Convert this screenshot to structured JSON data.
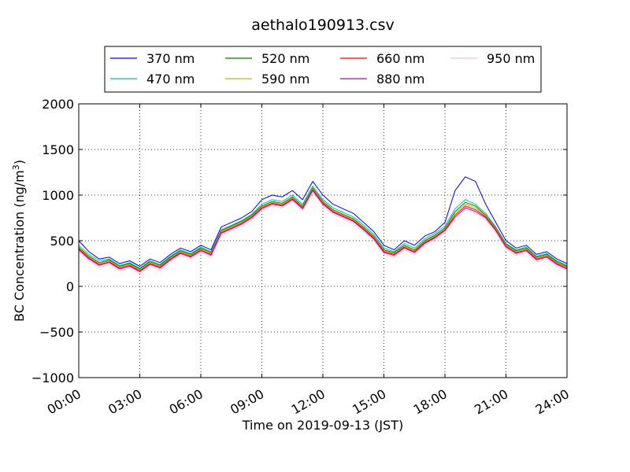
{
  "chart_data": {
    "type": "line",
    "title": "aethalo190913.csv",
    "xlabel": "Time on 2019-09-13 (JST)",
    "ylabel_main": "BC Concentration (ng/m",
    "ylabel_sup": "3",
    "ylabel_close": ")",
    "xlim": [
      0,
      24
    ],
    "ylim": [
      -1000,
      2000
    ],
    "x_ticks": [
      {
        "value": 0,
        "label": "00:00"
      },
      {
        "value": 3,
        "label": "03:00"
      },
      {
        "value": 6,
        "label": "06:00"
      },
      {
        "value": 9,
        "label": "09:00"
      },
      {
        "value": 12,
        "label": "12:00"
      },
      {
        "value": 15,
        "label": "15:00"
      },
      {
        "value": 18,
        "label": "18:00"
      },
      {
        "value": 21,
        "label": "21:00"
      },
      {
        "value": 24,
        "label": "24:00"
      }
    ],
    "y_ticks": [
      {
        "value": 2000,
        "label": "2000"
      },
      {
        "value": 1500,
        "label": "1500"
      },
      {
        "value": 1000,
        "label": "1000"
      },
      {
        "value": 500,
        "label": "500"
      },
      {
        "value": 0,
        "label": "0"
      },
      {
        "value": -500,
        "label": "−500"
      },
      {
        "value": -1000,
        "label": "−1000"
      }
    ],
    "grid": true,
    "legend_position": "top-center",
    "time_hours": [
      0,
      0.5,
      1,
      1.5,
      2,
      2.5,
      3,
      3.5,
      4,
      4.5,
      5,
      5.5,
      6,
      6.5,
      7,
      7.5,
      8,
      8.5,
      9,
      9.5,
      10,
      10.5,
      11,
      11.5,
      12,
      12.5,
      13,
      13.5,
      14,
      14.5,
      15,
      15.5,
      16,
      16.5,
      17,
      17.5,
      18,
      18.5,
      19,
      19.5,
      20,
      20.5,
      21,
      21.5,
      22,
      22.5,
      23,
      23.5,
      24
    ],
    "series": [
      {
        "name": "370 nm",
        "color": "#0000ff",
        "values": [
          500,
          380,
          300,
          320,
          250,
          280,
          220,
          300,
          260,
          350,
          420,
          380,
          450,
          400,
          650,
          700,
          750,
          820,
          950,
          1000,
          980,
          1050,
          950,
          1150,
          1000,
          900,
          850,
          800,
          700,
          600,
          450,
          400,
          500,
          450,
          550,
          600,
          700,
          1050,
          1200,
          1150,
          900,
          700,
          500,
          420,
          450,
          350,
          380,
          300,
          250
        ]
      },
      {
        "name": "470 nm",
        "color": "#00bfbf",
        "values": [
          450,
          350,
          280,
          300,
          230,
          260,
          200,
          280,
          240,
          330,
          400,
          360,
          430,
          380,
          620,
          670,
          720,
          790,
          900,
          950,
          930,
          1000,
          900,
          1100,
          950,
          860,
          810,
          760,
          670,
          570,
          420,
          380,
          470,
          420,
          520,
          580,
          660,
          850,
          950,
          900,
          800,
          650,
          470,
          400,
          430,
          330,
          360,
          280,
          230
        ]
      },
      {
        "name": "520 nm",
        "color": "#008000",
        "values": [
          430,
          330,
          260,
          290,
          220,
          250,
          190,
          270,
          230,
          320,
          390,
          350,
          420,
          370,
          610,
          660,
          710,
          780,
          880,
          930,
          910,
          980,
          880,
          1080,
          930,
          840,
          790,
          740,
          650,
          550,
          400,
          370,
          450,
          400,
          500,
          560,
          640,
          820,
          920,
          880,
          780,
          640,
          460,
          390,
          420,
          320,
          350,
          270,
          220
        ]
      },
      {
        "name": "590 nm",
        "color": "#bfbf00",
        "values": [
          420,
          320,
          250,
          280,
          210,
          240,
          180,
          260,
          220,
          310,
          380,
          340,
          410,
          360,
          600,
          650,
          700,
          770,
          870,
          920,
          900,
          970,
          870,
          1070,
          920,
          830,
          780,
          730,
          640,
          540,
          390,
          360,
          440,
          390,
          490,
          550,
          630,
          800,
          900,
          860,
          770,
          630,
          450,
          380,
          410,
          310,
          340,
          260,
          210
        ]
      },
      {
        "name": "660 nm",
        "color": "#ff0000",
        "values": [
          410,
          310,
          240,
          270,
          200,
          230,
          170,
          250,
          210,
          300,
          370,
          330,
          400,
          350,
          590,
          640,
          690,
          760,
          860,
          910,
          890,
          960,
          860,
          1060,
          910,
          820,
          770,
          720,
          630,
          530,
          380,
          350,
          430,
          380,
          480,
          540,
          620,
          780,
          880,
          840,
          760,
          620,
          440,
          370,
          400,
          300,
          330,
          250,
          200
        ]
      },
      {
        "name": "880 nm",
        "color": "#bf00bf",
        "values": [
          400,
          300,
          230,
          260,
          190,
          220,
          160,
          240,
          200,
          290,
          360,
          320,
          390,
          340,
          580,
          630,
          680,
          750,
          850,
          900,
          880,
          950,
          850,
          1050,
          900,
          810,
          760,
          710,
          620,
          520,
          370,
          340,
          420,
          370,
          470,
          530,
          610,
          760,
          860,
          820,
          750,
          610,
          430,
          360,
          390,
          290,
          320,
          240,
          190
        ]
      },
      {
        "name": "950 nm",
        "color": "#ffc0cb",
        "values": [
          380,
          280,
          210,
          240,
          170,
          200,
          140,
          220,
          180,
          270,
          340,
          300,
          370,
          320,
          560,
          610,
          660,
          730,
          830,
          880,
          860,
          930,
          830,
          1030,
          880,
          790,
          740,
          690,
          600,
          500,
          350,
          320,
          400,
          350,
          450,
          510,
          590,
          740,
          840,
          800,
          730,
          590,
          410,
          340,
          370,
          270,
          300,
          220,
          170
        ]
      }
    ]
  }
}
